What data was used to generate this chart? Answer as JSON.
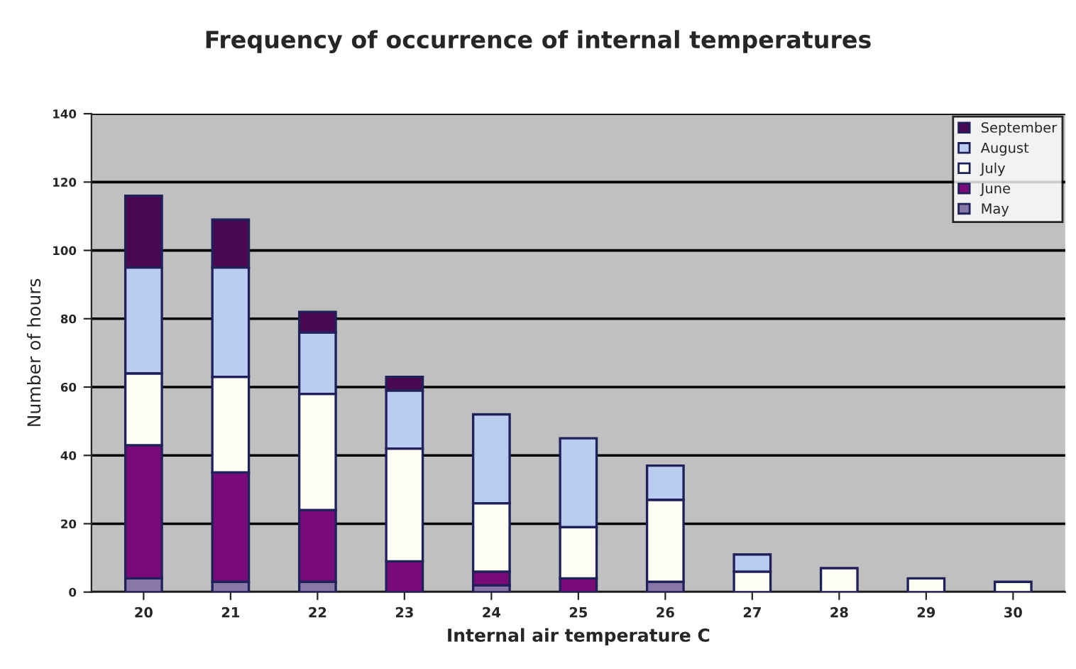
{
  "chart_data": {
    "type": "bar",
    "title": "Frequency of occurrence of internal temperatures",
    "xlabel": "Internal air temperature C",
    "ylabel": "Number of hours",
    "categories": [
      "20",
      "21",
      "22",
      "23",
      "24",
      "25",
      "26",
      "27",
      "28",
      "29",
      "30"
    ],
    "stacked": true,
    "ylim": [
      0,
      140
    ],
    "yticks": [
      0,
      20,
      40,
      60,
      80,
      100,
      120,
      140
    ],
    "grid": "y",
    "legend": "top right",
    "series": [
      {
        "name": "May",
        "color": "#8878a8",
        "values": [
          4,
          3,
          3,
          0,
          2,
          null,
          3,
          0,
          0,
          0,
          0
        ]
      },
      {
        "name": "June",
        "color": "#7a0a78",
        "values": [
          39,
          32,
          21,
          9,
          4,
          4,
          0,
          0,
          0,
          0,
          0
        ]
      },
      {
        "name": "July",
        "color": "#fffff4",
        "values": [
          21,
          28,
          34,
          33,
          20,
          15,
          24,
          6,
          7,
          4,
          3
        ]
      },
      {
        "name": "August",
        "color": "#b8cdf0",
        "values": [
          31,
          32,
          18,
          17,
          26,
          26,
          10,
          5,
          0,
          0,
          0
        ]
      },
      {
        "name": "September",
        "color": "#4a0852",
        "values": [
          21,
          14,
          6,
          4,
          0,
          0,
          0,
          0,
          0,
          0,
          0
        ]
      }
    ]
  }
}
